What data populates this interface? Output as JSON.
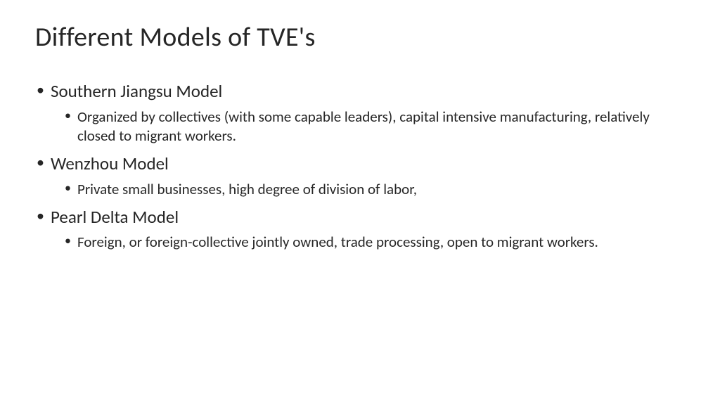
{
  "slide": {
    "title": "Different Models of TVE's",
    "background_color": "#ffffff",
    "text_color": "#262626",
    "title_fontsize": 38,
    "level1_fontsize": 25,
    "level2_fontsize": 21,
    "font_family": "Calibri",
    "bullets": [
      {
        "label": "Southern Jiangsu Model",
        "sub": [
          "Organized by collectives (with some capable leaders), capital intensive manufacturing, relatively closed to migrant workers."
        ]
      },
      {
        "label": "Wenzhou Model",
        "sub": [
          "Private small businesses, high degree of division of labor,"
        ]
      },
      {
        "label": "Pearl Delta Model",
        "sub": [
          "Foreign, or foreign-collective jointly owned, trade processing, open to migrant workers."
        ]
      }
    ]
  }
}
